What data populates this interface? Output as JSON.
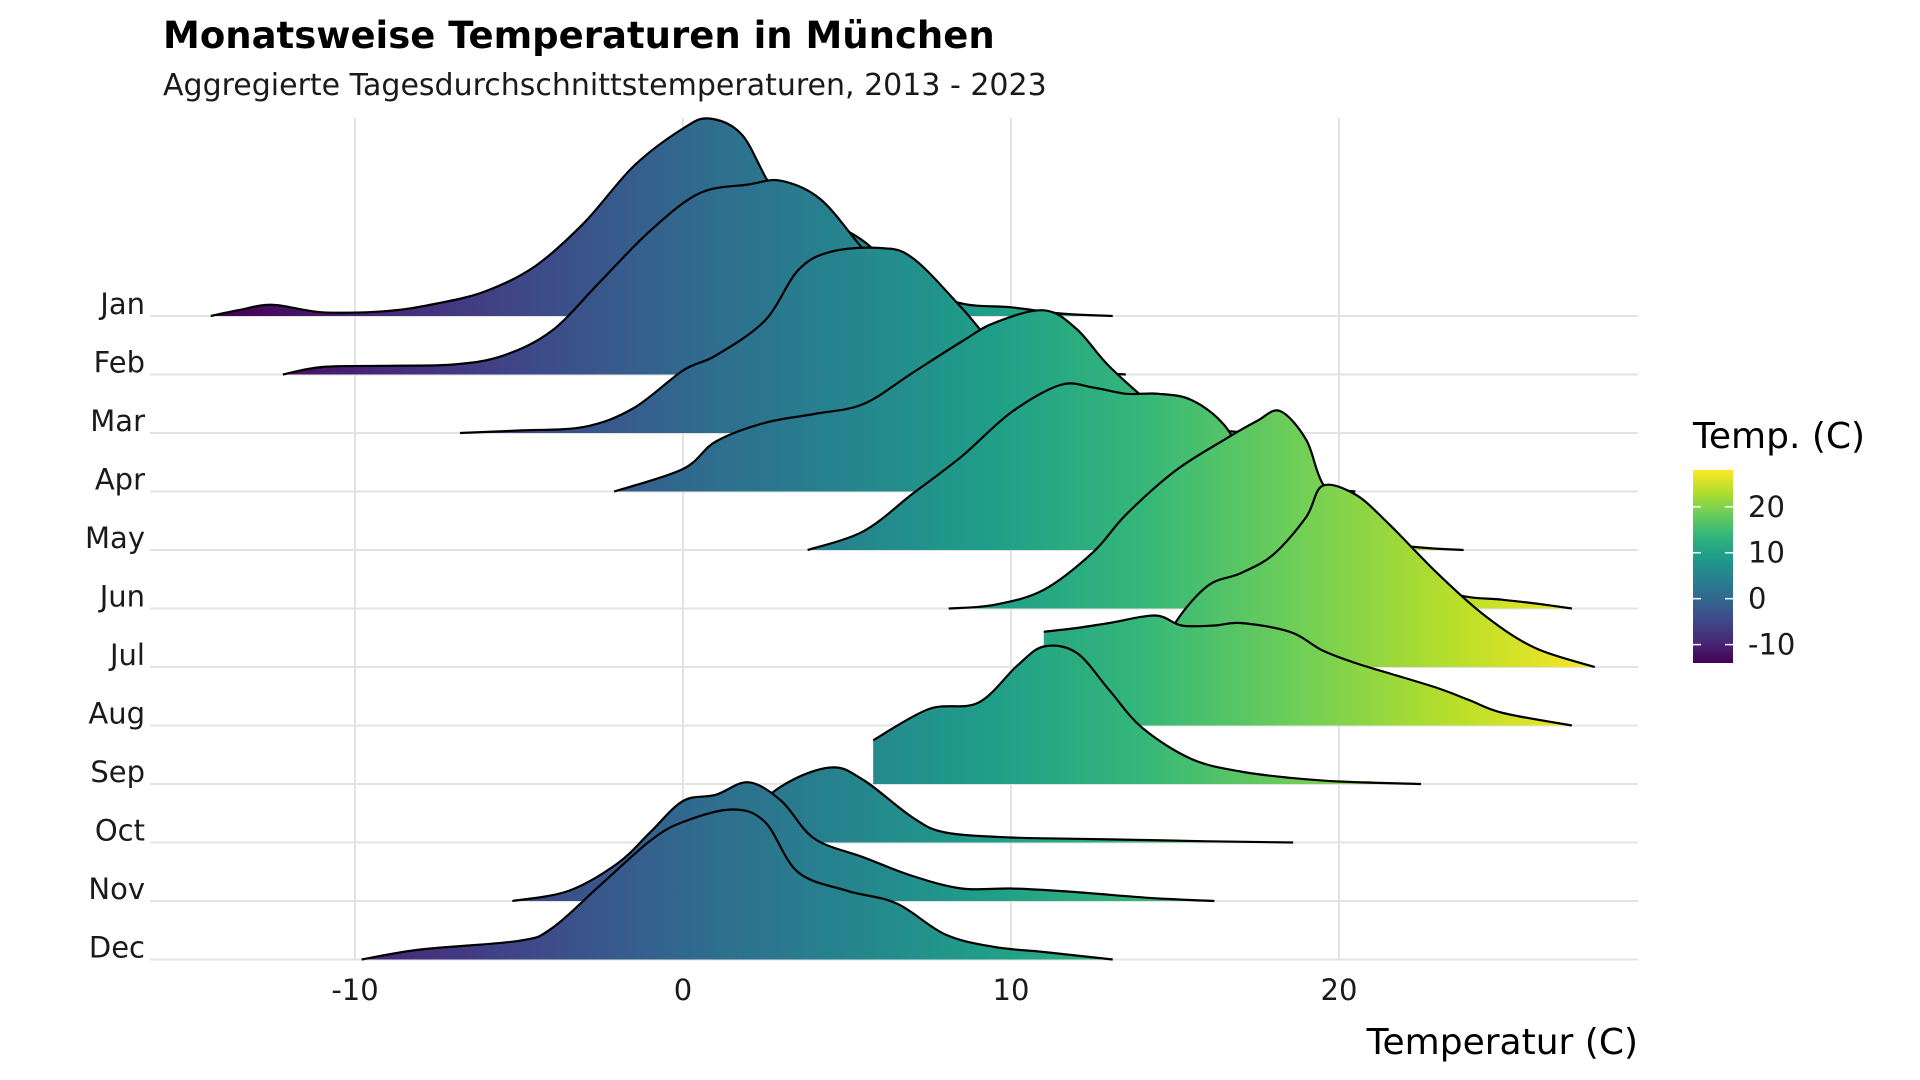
{
  "chart_data": {
    "type": "ridgeline",
    "title": "Monatsweise Temperaturen in München",
    "subtitle": "Aggregierte Tagesdurchschnittstemperaturen, 2013 - 2023",
    "xlabel": "Temperatur (C)",
    "ylabel": "",
    "xlim": [
      -16,
      29
    ],
    "x_ticks": [
      "-10",
      "0",
      "10",
      "20"
    ],
    "x_tick_values": [
      -10,
      0,
      10,
      20
    ],
    "grid": true,
    "legend": {
      "title": "Temp. (C)",
      "position": "right",
      "ticks": [
        "20",
        "10",
        "0",
        "-10"
      ],
      "tick_values": [
        20,
        10,
        0,
        -10
      ],
      "range": [
        -14,
        28
      ],
      "colors": [
        "#440154",
        "#482878",
        "#3e4989",
        "#31688e",
        "#26828e",
        "#1f9e89",
        "#35b779",
        "#6ece58",
        "#b5de2b",
        "#fde725"
      ]
    },
    "series": [
      {
        "name": "Jan",
        "points": [
          [
            -14.4,
            0
          ],
          [
            -13.5,
            0.05
          ],
          [
            -12.5,
            0.09
          ],
          [
            -11,
            0.03
          ],
          [
            -9,
            0.04
          ],
          [
            -7.5,
            0.1
          ],
          [
            -6,
            0.2
          ],
          [
            -4.5,
            0.4
          ],
          [
            -3,
            0.75
          ],
          [
            -1.5,
            1.2
          ],
          [
            0,
            1.5
          ],
          [
            0.8,
            1.58
          ],
          [
            1.8,
            1.45
          ],
          [
            2.8,
            1.0
          ],
          [
            4,
            0.82
          ],
          [
            5.5,
            0.6
          ],
          [
            7,
            0.25
          ],
          [
            8.5,
            0.1
          ],
          [
            10,
            0.07
          ],
          [
            11.5,
            0.02
          ],
          [
            13.1,
            0
          ]
        ]
      },
      {
        "name": "Feb",
        "points": [
          [
            -12.2,
            0
          ],
          [
            -11,
            0.06
          ],
          [
            -9,
            0.07
          ],
          [
            -7,
            0.08
          ],
          [
            -5.5,
            0.15
          ],
          [
            -4,
            0.35
          ],
          [
            -2.5,
            0.75
          ],
          [
            -1,
            1.15
          ],
          [
            0.5,
            1.45
          ],
          [
            2,
            1.52
          ],
          [
            3,
            1.55
          ],
          [
            4.2,
            1.4
          ],
          [
            5.5,
            1.0
          ],
          [
            7,
            0.55
          ],
          [
            8.5,
            0.25
          ],
          [
            10,
            0.08
          ],
          [
            11.5,
            0.03
          ],
          [
            13.5,
            0
          ]
        ]
      },
      {
        "name": "Mar",
        "points": [
          [
            -6.8,
            0
          ],
          [
            -5,
            0.02
          ],
          [
            -3,
            0.05
          ],
          [
            -1.5,
            0.2
          ],
          [
            0,
            0.5
          ],
          [
            1,
            0.62
          ],
          [
            2.5,
            0.9
          ],
          [
            3.5,
            1.3
          ],
          [
            4.5,
            1.45
          ],
          [
            6,
            1.48
          ],
          [
            7,
            1.4
          ],
          [
            8.5,
            1.0
          ],
          [
            10,
            0.55
          ],
          [
            11.5,
            0.3
          ],
          [
            13,
            0.18
          ],
          [
            14.5,
            0.1
          ],
          [
            16,
            0.03
          ],
          [
            17.5,
            0
          ]
        ]
      },
      {
        "name": "Apr",
        "points": [
          [
            -2.1,
            0
          ],
          [
            0,
            0.18
          ],
          [
            1,
            0.4
          ],
          [
            2.5,
            0.55
          ],
          [
            4,
            0.62
          ],
          [
            5.5,
            0.7
          ],
          [
            7,
            0.95
          ],
          [
            8.5,
            1.2
          ],
          [
            9.5,
            1.35
          ],
          [
            11,
            1.45
          ],
          [
            12,
            1.3
          ],
          [
            13,
            1.0
          ],
          [
            14.5,
            0.65
          ],
          [
            16,
            0.35
          ],
          [
            17.5,
            0.12
          ],
          [
            19,
            0.04
          ],
          [
            20.5,
            0
          ]
        ]
      },
      {
        "name": "May",
        "points": [
          [
            3.8,
            0
          ],
          [
            5.5,
            0.15
          ],
          [
            7,
            0.45
          ],
          [
            8.5,
            0.75
          ],
          [
            10,
            1.1
          ],
          [
            11.5,
            1.32
          ],
          [
            12.5,
            1.3
          ],
          [
            13.5,
            1.25
          ],
          [
            14.5,
            1.25
          ],
          [
            15.5,
            1.2
          ],
          [
            16.5,
            1.0
          ],
          [
            17.5,
            0.6
          ],
          [
            19,
            0.25
          ],
          [
            21,
            0.07
          ],
          [
            22.5,
            0.02
          ],
          [
            23.8,
            0
          ]
        ]
      },
      {
        "name": "Jun",
        "points": [
          [
            8.1,
            0
          ],
          [
            9.5,
            0.03
          ],
          [
            11,
            0.15
          ],
          [
            12.5,
            0.45
          ],
          [
            13.5,
            0.75
          ],
          [
            15,
            1.1
          ],
          [
            16.5,
            1.35
          ],
          [
            17.5,
            1.5
          ],
          [
            18.2,
            1.58
          ],
          [
            19,
            1.35
          ],
          [
            19.5,
            1.0
          ],
          [
            20.5,
            0.65
          ],
          [
            22,
            0.35
          ],
          [
            23.5,
            0.12
          ],
          [
            25,
            0.07
          ],
          [
            26,
            0.04
          ],
          [
            27.1,
            0
          ]
        ]
      },
      {
        "name": "Jul",
        "points": [
          [
            14.4,
            0
          ],
          [
            15,
            0.35
          ],
          [
            16,
            0.65
          ],
          [
            17,
            0.75
          ],
          [
            18,
            0.9
          ],
          [
            19,
            1.2
          ],
          [
            19.5,
            1.45
          ],
          [
            20.5,
            1.38
          ],
          [
            21.5,
            1.15
          ],
          [
            23,
            0.75
          ],
          [
            24.5,
            0.4
          ],
          [
            26,
            0.15
          ],
          [
            27.8,
            0
          ]
        ]
      },
      {
        "name": "Aug",
        "points": [
          [
            11,
            0.75
          ],
          [
            12,
            0.78
          ],
          [
            13,
            0.82
          ],
          [
            14.4,
            0.88
          ],
          [
            15.2,
            0.8
          ],
          [
            16.2,
            0.8
          ],
          [
            17,
            0.82
          ],
          [
            18.5,
            0.75
          ],
          [
            19.5,
            0.6
          ],
          [
            20.5,
            0.5
          ],
          [
            21.5,
            0.42
          ],
          [
            23,
            0.3
          ],
          [
            24,
            0.2
          ],
          [
            25,
            0.1
          ],
          [
            27.1,
            0
          ]
        ]
      },
      {
        "name": "Sep",
        "points": [
          [
            5.8,
            0.35
          ],
          [
            7.5,
            0.6
          ],
          [
            9,
            0.65
          ],
          [
            10.2,
            0.95
          ],
          [
            11,
            1.1
          ],
          [
            12,
            1.05
          ],
          [
            13,
            0.75
          ],
          [
            14,
            0.45
          ],
          [
            15.5,
            0.2
          ],
          [
            17,
            0.1
          ],
          [
            18.5,
            0.05
          ],
          [
            20,
            0.02
          ],
          [
            22.5,
            0
          ]
        ]
      },
      {
        "name": "Oct",
        "points": [
          [
            1.4,
            0.1
          ],
          [
            3,
            0.45
          ],
          [
            4.5,
            0.6
          ],
          [
            5.5,
            0.5
          ],
          [
            7,
            0.2
          ],
          [
            8,
            0.08
          ],
          [
            10,
            0.04
          ],
          [
            12,
            0.03
          ],
          [
            14,
            0.02
          ],
          [
            16,
            0.01
          ],
          [
            18.6,
            0
          ]
        ]
      },
      {
        "name": "Nov",
        "points": [
          [
            -5.2,
            0
          ],
          [
            -3.5,
            0.08
          ],
          [
            -2,
            0.3
          ],
          [
            -1,
            0.55
          ],
          [
            0,
            0.8
          ],
          [
            1,
            0.85
          ],
          [
            2,
            0.95
          ],
          [
            3,
            0.8
          ],
          [
            4,
            0.5
          ],
          [
            5.5,
            0.35
          ],
          [
            7,
            0.2
          ],
          [
            8.5,
            0.1
          ],
          [
            10,
            0.1
          ],
          [
            11.5,
            0.08
          ],
          [
            13,
            0.05
          ],
          [
            14.5,
            0.02
          ],
          [
            16.2,
            0
          ]
        ]
      },
      {
        "name": "Dec",
        "points": [
          [
            -9.8,
            0
          ],
          [
            -8,
            0.08
          ],
          [
            -5,
            0.15
          ],
          [
            -4,
            0.25
          ],
          [
            -2.5,
            0.6
          ],
          [
            -1,
            0.95
          ],
          [
            0,
            1.1
          ],
          [
            1.5,
            1.2
          ],
          [
            2.5,
            1.1
          ],
          [
            3.5,
            0.7
          ],
          [
            5,
            0.55
          ],
          [
            6.5,
            0.45
          ],
          [
            8,
            0.2
          ],
          [
            9.5,
            0.1
          ],
          [
            11,
            0.06
          ],
          [
            13.1,
            0
          ]
        ]
      }
    ]
  }
}
